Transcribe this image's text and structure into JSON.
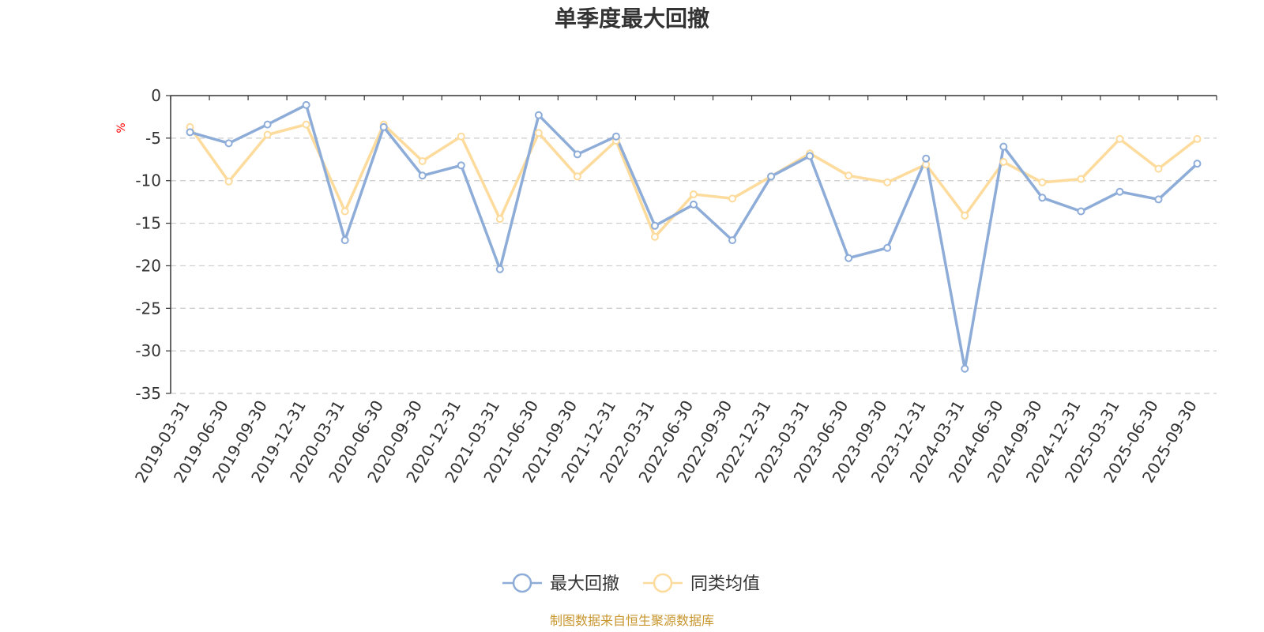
{
  "chart_data": {
    "type": "line",
    "title": "单季度最大回撤",
    "ylabel": "%",
    "ylim": [
      -35,
      0
    ],
    "yticks": [
      0,
      -5,
      -10,
      -15,
      -20,
      -25,
      -30,
      -35
    ],
    "grid": "horizontal-dashed",
    "legend_position": "bottom",
    "categories": [
      "2019-03-31",
      "2019-06-30",
      "2019-09-30",
      "2019-12-31",
      "2020-03-31",
      "2020-06-30",
      "2020-09-30",
      "2020-12-31",
      "2021-03-31",
      "2021-06-30",
      "2021-09-30",
      "2021-12-31",
      "2022-03-31",
      "2022-06-30",
      "2022-09-30",
      "2022-12-31",
      "2023-03-31",
      "2023-06-30",
      "2023-09-30",
      "2023-12-31",
      "2024-03-31",
      "2024-06-30",
      "2024-09-30",
      "2024-12-31",
      "2025-03-31",
      "2025-06-30",
      "2025-09-30"
    ],
    "series": [
      {
        "name": "最大回撤",
        "color": "#8eacd8",
        "values": [
          -4.3,
          -5.6,
          -3.4,
          -1.1,
          -17.0,
          -3.7,
          -9.4,
          -8.2,
          -20.4,
          -2.3,
          -6.9,
          -4.8,
          -15.3,
          -12.8,
          -17.0,
          -9.5,
          -7.1,
          -19.1,
          -17.9,
          -7.4,
          -32.1,
          -6.0,
          -12.0,
          -13.6,
          -11.3,
          -12.2,
          -8.0
        ]
      },
      {
        "name": "同类均值",
        "color": "#fddb9c",
        "values": [
          -3.7,
          -10.1,
          -4.6,
          -3.4,
          -13.6,
          -3.4,
          -7.7,
          -4.8,
          -14.5,
          -4.4,
          -9.5,
          -5.3,
          -16.6,
          -11.6,
          -12.1,
          -9.5,
          -6.8,
          -9.4,
          -10.2,
          -8.1,
          -14.1,
          -7.8,
          -10.2,
          -9.8,
          -5.1,
          -8.6,
          -5.1
        ]
      }
    ]
  },
  "source_note": "制图数据来自恒生聚源数据库"
}
